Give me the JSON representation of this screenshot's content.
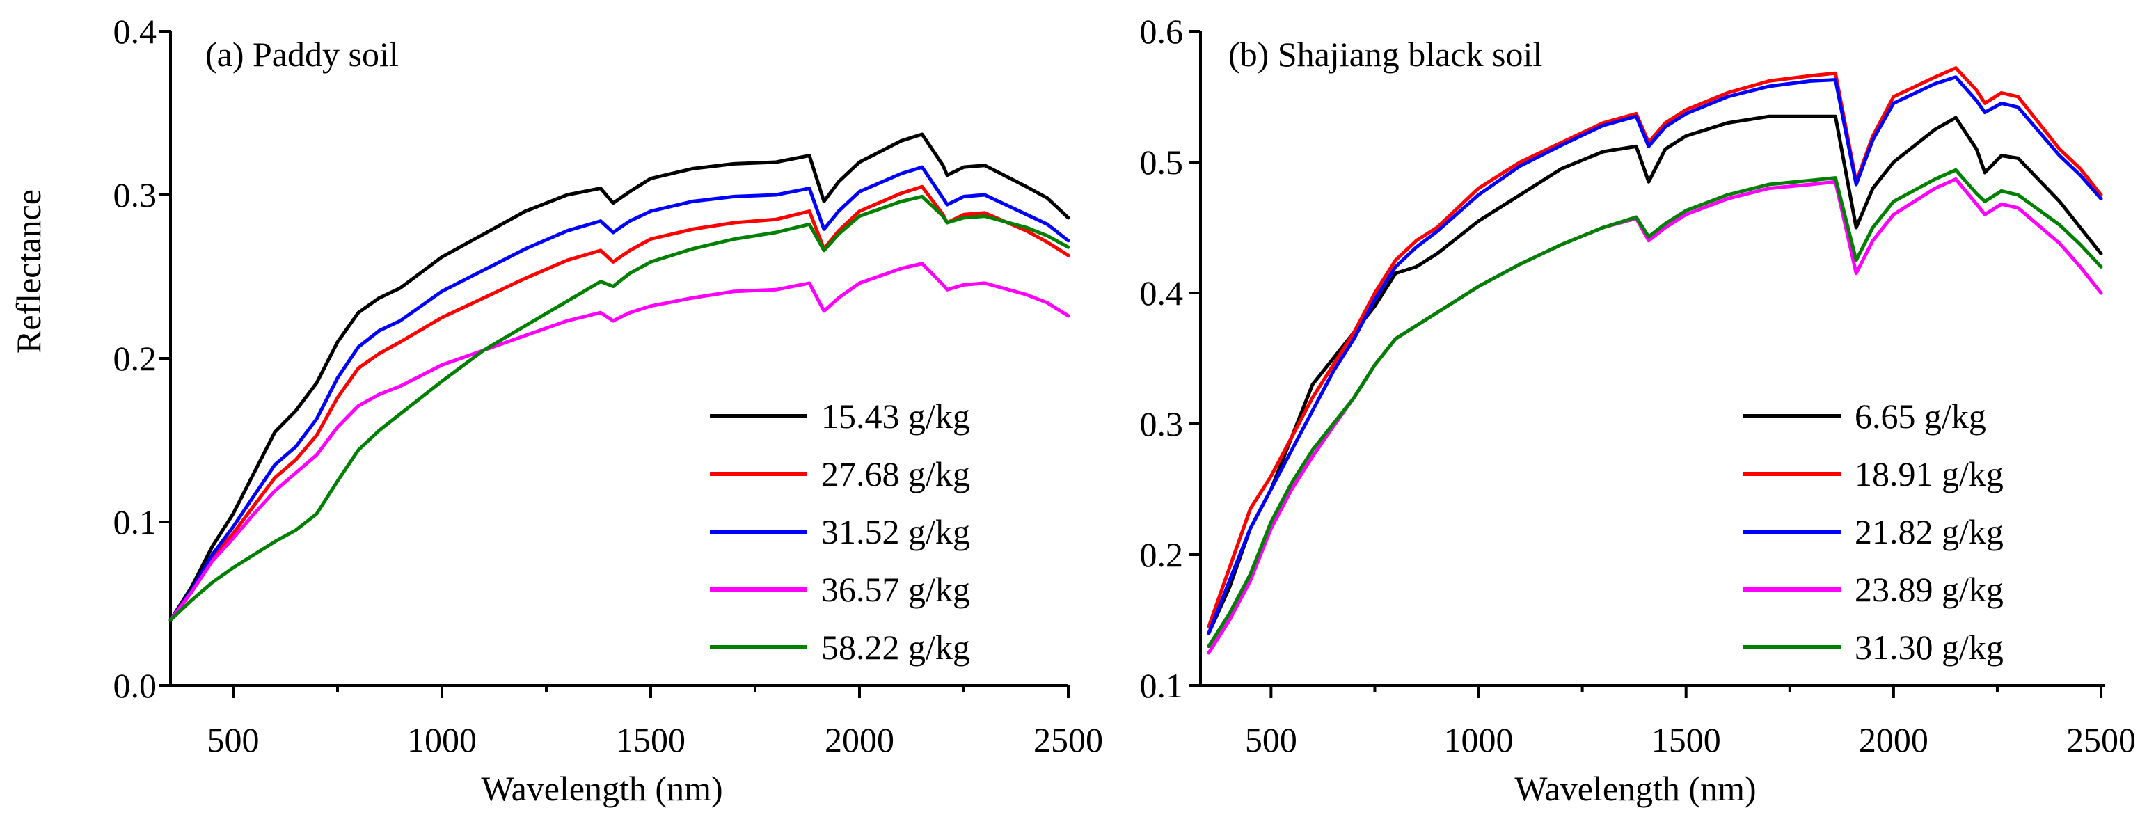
{
  "chart_data": [
    {
      "type": "line",
      "title": "(a) Paddy soil",
      "xlabel": "Wavelength (nm)",
      "ylabel": "Reflectance",
      "xlim": [
        350,
        2500
      ],
      "ylim": [
        0.0,
        0.4
      ],
      "xticks": [
        500,
        1000,
        1500,
        2000,
        2500
      ],
      "xtick_labels": [
        "500",
        "1000",
        "1500",
        "2000",
        "2500"
      ],
      "yticks": [
        0.0,
        0.1,
        0.2,
        0.3,
        0.4
      ],
      "ytick_labels": [
        "0.0",
        "0.1",
        "0.2",
        "0.3",
        "0.4"
      ],
      "legend_position": "bottom-right",
      "x": [
        350,
        400,
        450,
        500,
        550,
        600,
        650,
        700,
        750,
        800,
        850,
        900,
        1000,
        1100,
        1200,
        1300,
        1380,
        1410,
        1450,
        1500,
        1600,
        1700,
        1800,
        1880,
        1915,
        1950,
        2000,
        2100,
        2150,
        2200,
        2210,
        2250,
        2300,
        2400,
        2450,
        2500
      ],
      "series": [
        {
          "name": "15.43 g/kg",
          "color": "#000000",
          "values": [
            0.04,
            0.06,
            0.085,
            0.105,
            0.13,
            0.155,
            0.168,
            0.185,
            0.21,
            0.228,
            0.237,
            0.243,
            0.262,
            0.276,
            0.29,
            0.3,
            0.304,
            0.295,
            0.302,
            0.31,
            0.316,
            0.319,
            0.32,
            0.324,
            0.296,
            0.308,
            0.32,
            0.333,
            0.337,
            0.318,
            0.312,
            0.317,
            0.318,
            0.305,
            0.298,
            0.286
          ]
        },
        {
          "name": "27.68 g/kg",
          "color": "#ff0000",
          "values": [
            0.04,
            0.057,
            0.078,
            0.093,
            0.11,
            0.127,
            0.138,
            0.153,
            0.176,
            0.194,
            0.203,
            0.21,
            0.225,
            0.237,
            0.249,
            0.26,
            0.266,
            0.259,
            0.266,
            0.273,
            0.279,
            0.283,
            0.285,
            0.29,
            0.267,
            0.278,
            0.29,
            0.301,
            0.305,
            0.288,
            0.283,
            0.288,
            0.289,
            0.278,
            0.271,
            0.263
          ]
        },
        {
          "name": "31.52 g/kg",
          "color": "#0000ff",
          "values": [
            0.04,
            0.058,
            0.08,
            0.097,
            0.116,
            0.135,
            0.146,
            0.163,
            0.188,
            0.207,
            0.217,
            0.223,
            0.241,
            0.254,
            0.267,
            0.278,
            0.284,
            0.277,
            0.284,
            0.29,
            0.296,
            0.299,
            0.3,
            0.304,
            0.279,
            0.29,
            0.302,
            0.313,
            0.317,
            0.298,
            0.294,
            0.299,
            0.3,
            0.288,
            0.282,
            0.272
          ]
        },
        {
          "name": "36.57 g/kg",
          "color": "#ff00ff",
          "values": [
            0.04,
            0.057,
            0.076,
            0.09,
            0.105,
            0.119,
            0.13,
            0.141,
            0.158,
            0.171,
            0.178,
            0.183,
            0.196,
            0.205,
            0.214,
            0.223,
            0.228,
            0.223,
            0.228,
            0.232,
            0.237,
            0.241,
            0.242,
            0.246,
            0.229,
            0.237,
            0.246,
            0.255,
            0.258,
            0.245,
            0.242,
            0.245,
            0.246,
            0.239,
            0.234,
            0.226
          ]
        },
        {
          "name": "58.22 g/kg",
          "color": "#008000",
          "values": [
            0.04,
            0.052,
            0.063,
            0.072,
            0.08,
            0.088,
            0.095,
            0.105,
            0.125,
            0.144,
            0.156,
            0.166,
            0.186,
            0.205,
            0.22,
            0.235,
            0.247,
            0.244,
            0.252,
            0.259,
            0.267,
            0.273,
            0.277,
            0.282,
            0.266,
            0.276,
            0.287,
            0.296,
            0.299,
            0.287,
            0.283,
            0.286,
            0.287,
            0.28,
            0.275,
            0.268
          ]
        }
      ]
    },
    {
      "type": "line",
      "title": "(b) Shajiang black soil",
      "xlabel": "Wavelength (nm)",
      "ylabel": "",
      "xlim": [
        330,
        2510
      ],
      "ylim": [
        0.1,
        0.6
      ],
      "xticks": [
        500,
        1000,
        1500,
        2000,
        2500
      ],
      "xtick_labels": [
        "500",
        "1000",
        "1500",
        "2000",
        "2500"
      ],
      "yticks": [
        0.1,
        0.2,
        0.3,
        0.4,
        0.5,
        0.6
      ],
      "ytick_labels": [
        "0.1",
        "0.2",
        "0.3",
        "0.4",
        "0.5",
        "0.6"
      ],
      "legend_position": "bottom-right",
      "x": [
        350,
        400,
        450,
        500,
        550,
        600,
        650,
        700,
        750,
        800,
        850,
        900,
        1000,
        1100,
        1200,
        1300,
        1380,
        1410,
        1450,
        1500,
        1600,
        1700,
        1800,
        1860,
        1910,
        1950,
        2000,
        2100,
        2150,
        2200,
        2220,
        2260,
        2300,
        2400,
        2450,
        2500
      ],
      "series": [
        {
          "name": "6.65 g/kg",
          "color": "#000000",
          "values": [
            0.14,
            0.175,
            0.22,
            0.25,
            0.29,
            0.33,
            0.35,
            0.37,
            0.39,
            0.415,
            0.42,
            0.43,
            0.455,
            0.475,
            0.495,
            0.508,
            0.512,
            0.485,
            0.51,
            0.52,
            0.53,
            0.535,
            0.535,
            0.535,
            0.45,
            0.48,
            0.5,
            0.525,
            0.534,
            0.51,
            0.492,
            0.505,
            0.503,
            0.47,
            0.45,
            0.43
          ]
        },
        {
          "name": "18.91 g/kg",
          "color": "#ff0000",
          "values": [
            0.145,
            0.19,
            0.235,
            0.26,
            0.29,
            0.32,
            0.345,
            0.37,
            0.4,
            0.425,
            0.44,
            0.45,
            0.48,
            0.5,
            0.515,
            0.53,
            0.537,
            0.515,
            0.53,
            0.54,
            0.553,
            0.562,
            0.566,
            0.568,
            0.485,
            0.52,
            0.55,
            0.565,
            0.572,
            0.555,
            0.545,
            0.553,
            0.55,
            0.51,
            0.495,
            0.475
          ]
        },
        {
          "name": "21.82 g/kg",
          "color": "#0000ff",
          "values": [
            0.14,
            0.18,
            0.22,
            0.25,
            0.28,
            0.31,
            0.34,
            0.365,
            0.395,
            0.42,
            0.435,
            0.447,
            0.475,
            0.497,
            0.513,
            0.528,
            0.535,
            0.512,
            0.527,
            0.537,
            0.55,
            0.558,
            0.562,
            0.563,
            0.483,
            0.517,
            0.545,
            0.56,
            0.565,
            0.547,
            0.538,
            0.545,
            0.542,
            0.505,
            0.49,
            0.472
          ]
        },
        {
          "name": "23.89 g/kg",
          "color": "#ff00ff",
          "values": [
            0.125,
            0.15,
            0.18,
            0.22,
            0.25,
            0.275,
            0.298,
            0.32,
            0.345,
            0.365,
            0.375,
            0.385,
            0.405,
            0.422,
            0.437,
            0.45,
            0.457,
            0.44,
            0.45,
            0.46,
            0.472,
            0.48,
            0.483,
            0.485,
            0.415,
            0.44,
            0.46,
            0.48,
            0.487,
            0.468,
            0.46,
            0.468,
            0.465,
            0.438,
            0.42,
            0.4
          ]
        },
        {
          "name": "31.30 g/kg",
          "color": "#008000",
          "values": [
            0.13,
            0.155,
            0.185,
            0.225,
            0.255,
            0.28,
            0.3,
            0.32,
            0.345,
            0.365,
            0.375,
            0.385,
            0.405,
            0.422,
            0.437,
            0.45,
            0.458,
            0.443,
            0.453,
            0.463,
            0.475,
            0.483,
            0.486,
            0.488,
            0.425,
            0.45,
            0.47,
            0.487,
            0.494,
            0.476,
            0.47,
            0.478,
            0.475,
            0.452,
            0.437,
            0.42
          ]
        }
      ]
    }
  ]
}
